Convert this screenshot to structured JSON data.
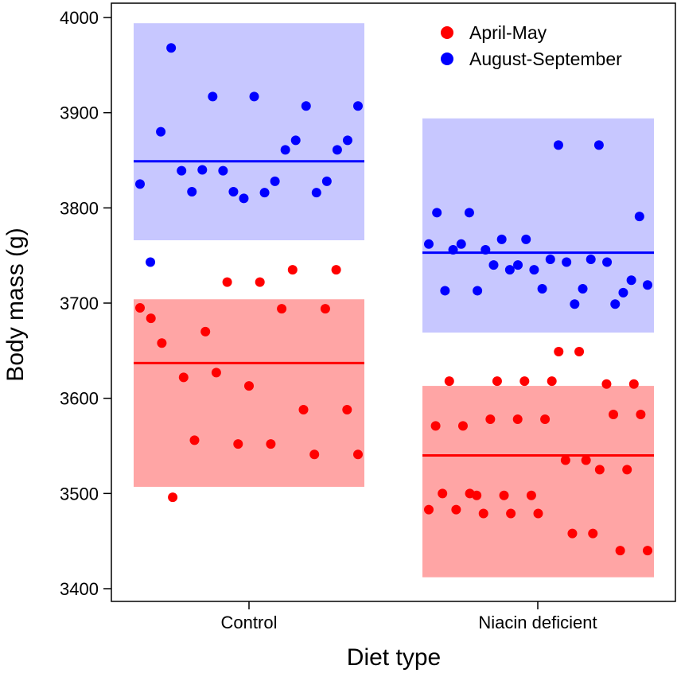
{
  "chart_data": {
    "type": "scatter",
    "xlabel": "Diet type",
    "ylabel": "Body mass (g)",
    "ylim": [
      3400,
      4000
    ],
    "yticks": [
      3400,
      3500,
      3600,
      3700,
      3800,
      3900,
      4000
    ],
    "categories": [
      "Control",
      "Niacin deficient"
    ],
    "legend_position": "top-right",
    "series": [
      {
        "name": "April-May",
        "color": "#ff0000",
        "band_color": "#ffa5a5",
        "groups": [
          {
            "category": "Control",
            "mean": 3637,
            "band": [
              3507,
              3704
            ],
            "points": [
              3695,
              3684,
              3658,
              3496,
              3622,
              3556,
              3670,
              3627,
              3722,
              3552,
              3613,
              3722,
              3552,
              3694,
              3735,
              3588,
              3541,
              3694,
              3735,
              3588,
              3541
            ]
          },
          {
            "category": "Niacin deficient",
            "mean": 3540,
            "band": [
              3412,
              3613
            ],
            "points": [
              3483,
              3571,
              3500,
              3618,
              3483,
              3571,
              3500,
              3498,
              3479,
              3578,
              3618,
              3498,
              3479,
              3578,
              3618,
              3498,
              3479,
              3578,
              3618,
              3649,
              3535,
              3458,
              3649,
              3535,
              3458,
              3525,
              3615,
              3583,
              3440,
              3525,
              3615,
              3583,
              3440
            ]
          }
        ]
      },
      {
        "name": "August-September",
        "color": "#0000ff",
        "band_color": "#a5a5ff",
        "groups": [
          {
            "category": "Control",
            "mean": 3849,
            "band": [
              3766,
              3994
            ],
            "points": [
              3825,
              3743,
              3880,
              3968,
              3839,
              3817,
              3840,
              3917,
              3839,
              3817,
              3810,
              3917,
              3816,
              3828,
              3861,
              3871,
              3907,
              3816,
              3828,
              3861,
              3871,
              3907
            ]
          },
          {
            "category": "Niacin deficient",
            "mean": 3753,
            "band": [
              3669,
              3894
            ],
            "points": [
              3762,
              3795,
              3713,
              3756,
              3762,
              3795,
              3713,
              3756,
              3740,
              3767,
              3735,
              3740,
              3767,
              3735,
              3715,
              3746,
              3866,
              3743,
              3699,
              3715,
              3746,
              3866,
              3743,
              3699,
              3711,
              3724,
              3791,
              3719
            ]
          }
        ]
      }
    ]
  }
}
